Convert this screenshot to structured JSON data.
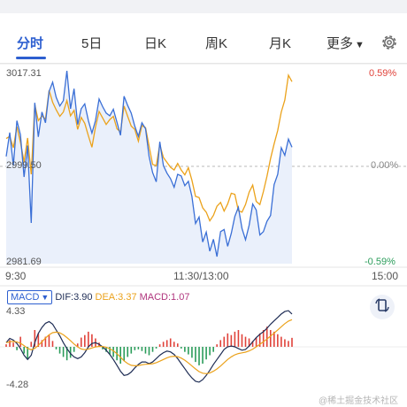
{
  "tabs": [
    {
      "label": "分时",
      "active": true
    },
    {
      "label": "5日",
      "active": false
    },
    {
      "label": "日K",
      "active": false
    },
    {
      "label": "周K",
      "active": false
    },
    {
      "label": "月K",
      "active": false
    },
    {
      "label": "更多",
      "active": false
    }
  ],
  "more_caret_icon": "caret-down-icon",
  "settings_icon": "gear-icon",
  "chart": {
    "price_labels": {
      "high": "3017.31",
      "mid": "2999.50",
      "low": "2981.69"
    },
    "pct_labels": {
      "high": "0.59%",
      "mid": "0.00%",
      "low": "-0.59%"
    },
    "time_labels": {
      "start": "9:30",
      "mid": "11:30/13:00",
      "end": "15:00"
    },
    "colors": {
      "price_line": "#3a6fd6",
      "avg_line": "#eba21b",
      "up": "#e0423a",
      "down": "#2a9c5a",
      "dif": "#1f2d55",
      "dea": "#eba21b",
      "macd": "#b0357d"
    }
  },
  "macd": {
    "indicator": "MACD",
    "dif_label": "DIF:3.90",
    "dea_label": "DEA:3.37",
    "macd_label": "MACD:1.07",
    "y_max": "4.33",
    "y_min": "-4.28"
  },
  "rotate_icon": "rotate-screen-icon",
  "watermark": "@稀土掘金技术社区",
  "chart_data": {
    "type": "line",
    "ylim": [
      2981.69,
      3017.31
    ],
    "series": [
      {
        "values": [
          3001.5,
          3005.9,
          2999.8,
          3008.1,
          3005.5,
          2997.7,
          3003.5,
          2989.2,
          3011.4,
          3005.1,
          3009.7,
          3007.7,
          3013.5,
          3015.2,
          3012.4,
          3010.8,
          3011.8,
          3017.3,
          3010.3,
          3014.0,
          3007.4,
          3010.3,
          3011.2,
          3008.1,
          3005.8,
          3008.1,
          3012.1,
          3010.7,
          3009.5,
          3009.0,
          3010.2,
          3007.8,
          3005.4,
          3012.6,
          3010.9,
          3009.5,
          3007.1,
          3005.2,
          3007.7,
          3006.6,
          3001.5,
          2998.5,
          2996.8,
          3004.2,
          2999.8,
          2998.4,
          2997.4,
          2995.8,
          2998.2,
          2997.9,
          2996.1,
          2996.9,
          2994.1,
          2989.1,
          2990.3,
          2985.7,
          2987.5,
          2984.0,
          2986.2,
          2983.0,
          2987.6,
          2988.0,
          2984.9,
          2987.3,
          2990.4,
          2992.1,
          2988.2,
          2986.1,
          2988.8,
          2992.7,
          2991.6,
          2987.0,
          2987.6,
          2989.5,
          2990.6,
          2996.3,
          2998.2,
          3003.1,
          3001.7,
          3004.7,
          3003.2
        ]
      },
      {
        "values": [
          3004.8,
          3005.2,
          3003.1,
          3007.0,
          3004.1,
          3000.5,
          3004.9,
          2998.2,
          3011.1,
          3008.1,
          3009.0,
          3008.4,
          3013.7,
          3011.5,
          3010.1,
          3008.9,
          3009.7,
          3011.8,
          3009.0,
          3010.0,
          3006.5,
          3008.7,
          3007.6,
          3005.3,
          3003.2,
          3006.9,
          3009.8,
          3008.6,
          3007.4,
          3008.3,
          3008.9,
          3006.6,
          3006.0,
          3010.8,
          3008.9,
          3007.1,
          3006.5,
          3004.3,
          3007.2,
          3006.8,
          3003.4,
          3000.0,
          2999.8,
          3003.7,
          3001.3,
          3000.4,
          2999.5,
          2999.0,
          3000.2,
          2999.0,
          2998.1,
          2999.4,
          2997.1,
          2994.1,
          2993.9,
          2992.0,
          2991.2,
          2989.6,
          2990.6,
          2992.3,
          2993.0,
          2991.4,
          2992.7,
          2994.7,
          2994.5,
          2991.5,
          2991.2,
          2992.6,
          2994.9,
          2996.2,
          2993.2,
          2992.6,
          2995.0,
          2997.8,
          3001.1,
          3003.8,
          3006.3,
          3009.7,
          3011.9,
          3016.5,
          3015.3
        ]
      }
    ],
    "macd_histogram": [
      0.3,
      0.8,
      0.5,
      -0.4,
      1.2,
      -0.8,
      -1.4,
      0.6,
      2.0,
      1.6,
      0.8,
      1.2,
      1.4,
      0.7,
      -0.3,
      -0.8,
      -1.2,
      -1.6,
      -1.3,
      -0.6,
      0.4,
      1.1,
      1.4,
      1.8,
      1.5,
      1.0,
      0.5,
      -0.3,
      -0.6,
      -0.9,
      -1.2,
      -1.6,
      -2.0,
      -1.7,
      -1.2,
      -0.8,
      -0.4,
      -0.3,
      -0.5,
      -0.8,
      -1.0,
      -0.6,
      -0.2,
      0.3,
      0.6,
      0.8,
      1.0,
      0.6,
      0.4,
      -0.2,
      -0.6,
      -0.9,
      -1.3,
      -1.8,
      -2.2,
      -2.0,
      -1.5,
      -1.0,
      -0.6,
      0.3,
      0.8,
      1.2,
      1.6,
      1.4,
      1.8,
      2.0,
      1.5,
      1.2,
      1.0,
      0.7,
      1.1,
      1.6,
      2.0,
      2.4,
      2.0,
      1.8,
      1.5,
      1.2,
      0.9,
      0.7,
      1.07
    ],
    "dif": [
      0.5,
      1.0,
      0.8,
      0.4,
      -0.2,
      -1.0,
      -1.5,
      -1.0,
      0.5,
      1.6,
      2.3,
      2.8,
      3.0,
      2.7,
      2.0,
      1.3,
      0.5,
      -0.2,
      -0.8,
      -1.2,
      -1.4,
      -1.2,
      -0.7,
      0.0,
      0.4,
      0.5,
      0.3,
      0.0,
      -0.4,
      -0.9,
      -1.5,
      -2.2,
      -2.9,
      -3.4,
      -3.3,
      -3.0,
      -2.5,
      -2.1,
      -1.8,
      -1.8,
      -2.0,
      -1.8,
      -1.4,
      -1.0,
      -0.7,
      -0.5,
      -0.6,
      -0.9,
      -1.4,
      -2.0,
      -2.6,
      -3.2,
      -3.7,
      -4.1,
      -4.2,
      -3.9,
      -3.4,
      -2.8,
      -2.1,
      -1.5,
      -0.9,
      -0.3,
      0.0,
      0.1,
      0.0,
      -0.2,
      -0.4,
      -0.3,
      0.1,
      0.6,
      1.1,
      1.5,
      1.8,
      2.2,
      2.7,
      3.1,
      3.5,
      3.9,
      4.2,
      4.3,
      3.9
    ]
  }
}
